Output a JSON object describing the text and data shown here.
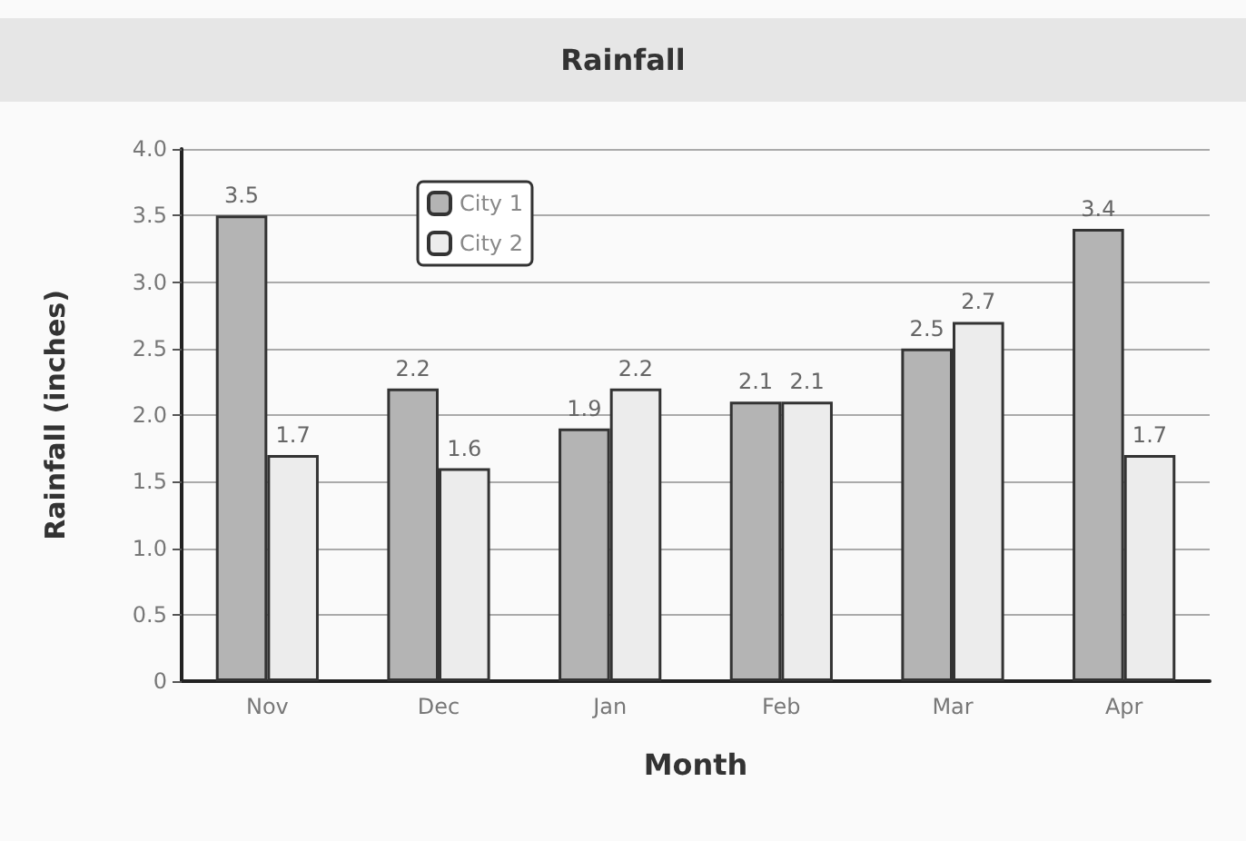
{
  "chart_data": {
    "type": "bar",
    "title": "Rainfall",
    "xlabel": "Month",
    "ylabel": "Rainfall (inches)",
    "categories": [
      "Nov",
      "Dec",
      "Jan",
      "Feb",
      "Mar",
      "Apr"
    ],
    "series": [
      {
        "name": "City 1",
        "color": "#b4b4b4",
        "values": [
          3.5,
          2.2,
          1.9,
          2.1,
          2.5,
          3.4
        ]
      },
      {
        "name": "City 2",
        "color": "#ececec",
        "values": [
          1.7,
          1.6,
          2.2,
          2.1,
          2.7,
          1.7
        ]
      }
    ],
    "ylim": [
      0,
      4
    ],
    "yticks": [
      0,
      0.5,
      {
        "value": 1,
        "label": "1.0"
      },
      1.5,
      {
        "value": 2,
        "label": "2.0"
      },
      2.5,
      {
        "value": 3,
        "label": "3.0"
      },
      3.5,
      {
        "value": 4,
        "label": "4.0"
      }
    ],
    "grid": "y",
    "legend": "top left",
    "data_labels": true
  }
}
